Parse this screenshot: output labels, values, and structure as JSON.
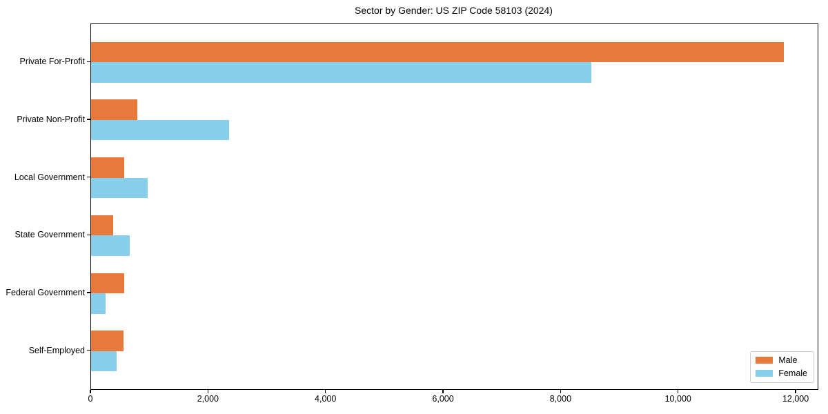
{
  "title": "Sector by Gender: US ZIP Code 58103 (2024)",
  "chart_data": {
    "type": "bar",
    "orientation": "horizontal",
    "title": "Sector by Gender: US ZIP Code 58103 (2024)",
    "xlabel": "",
    "ylabel": "",
    "categories": [
      "Private For-Profit",
      "Private Non-Profit",
      "Local Government",
      "State Government",
      "Federal Government",
      "Self-Employed"
    ],
    "series": [
      {
        "name": "Male",
        "color": "#e8793c",
        "values": [
          11790,
          790,
          560,
          370,
          560,
          550
        ]
      },
      {
        "name": "Female",
        "color": "#87ceeb",
        "values": [
          8510,
          2350,
          960,
          660,
          250,
          430
        ]
      }
    ],
    "xlim": [
      0,
      12363
    ],
    "xticks": [
      0,
      2000,
      4000,
      6000,
      8000,
      10000,
      12000
    ],
    "xtick_labels": [
      "0",
      "2,000",
      "4,000",
      "6,000",
      "8,000",
      "10,000",
      "12,000"
    ],
    "grid": false,
    "legend_position": "lower right",
    "colors": {
      "axis": "#000000",
      "legend_border": "#cccccc",
      "background": "#ffffff"
    }
  },
  "legend": {
    "items": [
      {
        "label": "Male"
      },
      {
        "label": "Female"
      }
    ]
  }
}
